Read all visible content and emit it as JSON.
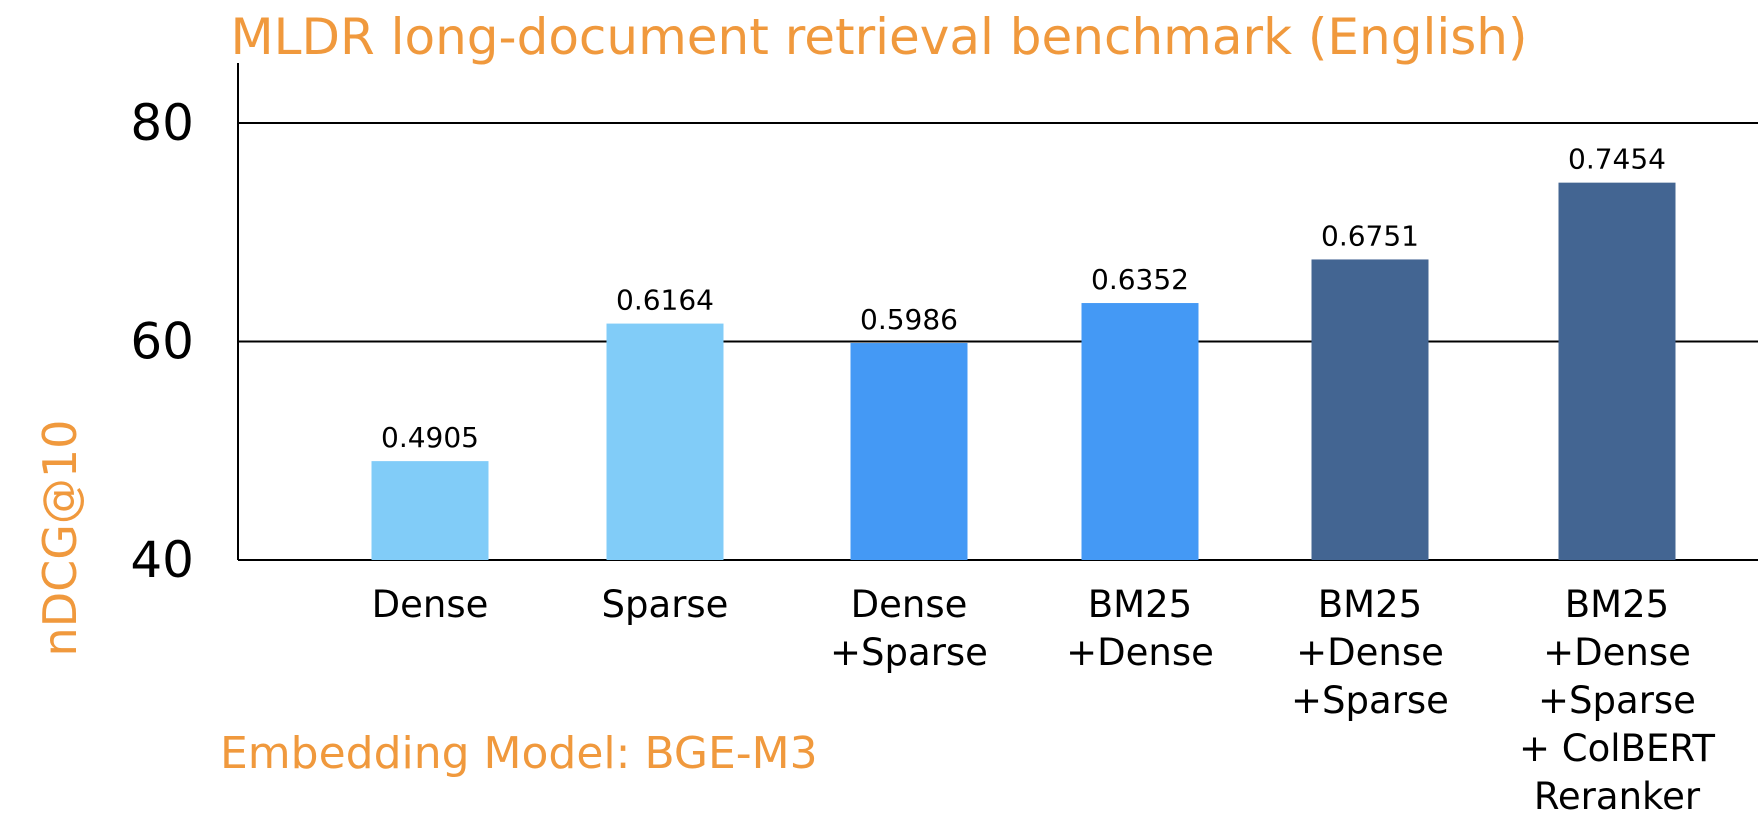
{
  "chart_data": {
    "type": "bar",
    "title": "MLDR long-document retrieval benchmark (English)",
    "ylabel": "nDCG@10",
    "subtitle": "Embedding Model: BGE-M3",
    "ylim": [
      40,
      85
    ],
    "yticks": [
      40,
      60,
      80
    ],
    "grid": true,
    "categories": [
      [
        "Dense"
      ],
      [
        "Sparse"
      ],
      [
        "Dense",
        "+Sparse"
      ],
      [
        "BM25",
        "+Dense"
      ],
      [
        "BM25",
        "+Dense",
        "+Sparse"
      ],
      [
        "BM25",
        "+Dense",
        "+Sparse",
        "+ ColBERT",
        "Reranker"
      ]
    ],
    "values": [
      49.05,
      61.64,
      59.86,
      63.52,
      67.51,
      74.54
    ],
    "value_labels": [
      "0.4905",
      "0.6164",
      "0.5986",
      "0.6352",
      "0.6751",
      "0.7454"
    ],
    "colors": [
      "#81CCF8",
      "#81CCF8",
      "#4499F5",
      "#4499F5",
      "#436592",
      "#436592"
    ]
  }
}
